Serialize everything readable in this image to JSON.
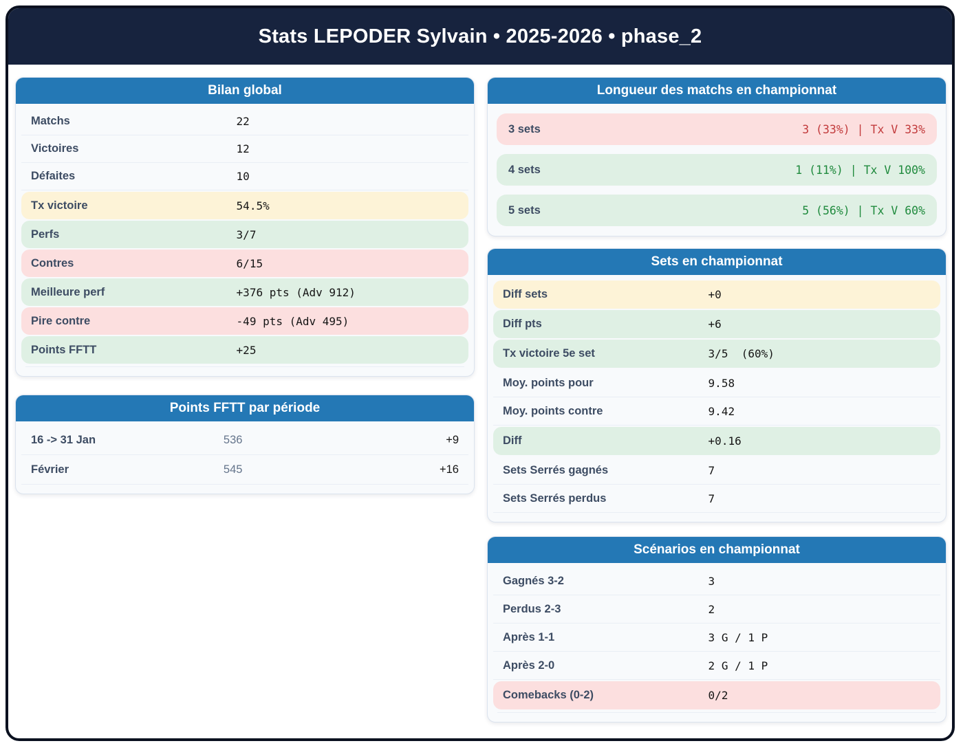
{
  "title": "Stats LEPODER Sylvain • 2025-2026 • phase_2",
  "theme": {
    "header_navy": "#17233e",
    "page_border": "#0b1120",
    "card_header_blue": "#2478b5",
    "card_body_bg": "#f8fafc",
    "chip_yellow": "#fdf3d7",
    "chip_green": "#dff0e4",
    "chip_pink": "#fcdfdf",
    "label_color": "#3d4c63",
    "value_color": "#151515",
    "value_red": "#c23b3c",
    "value_green": "#1f8a3d",
    "muted_value": "#64748b"
  },
  "cards": {
    "bilan": {
      "title": "Bilan global",
      "rows": [
        {
          "label": "Matchs",
          "value": "22"
        },
        {
          "label": "Victoires",
          "value": "12"
        },
        {
          "label": "Défaites",
          "value": "10"
        },
        {
          "label": "Tx victoire",
          "value": "54.5%"
        },
        {
          "label": "Perfs",
          "value": "3/7"
        },
        {
          "label": "Contres",
          "value": "6/15"
        },
        {
          "label": "Meilleure perf",
          "value": "+376 pts (Adv 912)"
        },
        {
          "label": "Pire contre",
          "value": "-49 pts (Adv 495)"
        },
        {
          "label": "Points FFTT",
          "value": "+25"
        }
      ]
    },
    "points_periode": {
      "title": "Points FFTT par période",
      "rows": [
        {
          "label": "16 -> 31 Jan",
          "value": "536",
          "delta": "+9"
        },
        {
          "label": "Février",
          "value": "545",
          "delta": "+16"
        }
      ]
    },
    "longueur": {
      "title": "Longueur des matchs en championnat",
      "rows": [
        {
          "label": "3 sets",
          "value": "3 (33%) | Tx V 33%"
        },
        {
          "label": "4 sets",
          "value": "1 (11%) | Tx V 100%"
        },
        {
          "label": "5 sets",
          "value": "5 (56%) | Tx V 60%"
        }
      ]
    },
    "sets": {
      "title": "Sets en championnat",
      "rows": [
        {
          "label": "Diff sets",
          "value": "+0"
        },
        {
          "label": "Diff pts",
          "value": "+6"
        },
        {
          "label": "Tx victoire 5e set",
          "value": "3/5  (60%)"
        },
        {
          "label": "Moy. points pour",
          "value": "9.58"
        },
        {
          "label": "Moy. points contre",
          "value": "9.42"
        },
        {
          "label": "Diff",
          "value": "+0.16"
        },
        {
          "label": "Sets Serrés gagnés",
          "value": "7"
        },
        {
          "label": "Sets Serrés perdus",
          "value": "7"
        }
      ]
    },
    "scenarios": {
      "title": "Scénarios en championnat",
      "rows": [
        {
          "label": "Gagnés 3-2",
          "value": "3"
        },
        {
          "label": "Perdus 2-3",
          "value": "2"
        },
        {
          "label": "Après 1-1",
          "value": "3 G / 1 P"
        },
        {
          "label": "Après 2-0",
          "value": "2 G / 1 P"
        },
        {
          "label": "Comebacks (0-2)",
          "value": "0/2"
        }
      ]
    }
  }
}
